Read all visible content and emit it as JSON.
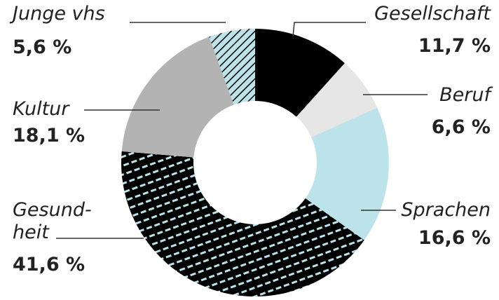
{
  "chart_data": {
    "type": "donut",
    "categories": [
      "Gesellschaft",
      "Beruf",
      "Sprachen",
      "Gesund-\nheit",
      "Kultur",
      "Junge vhs"
    ],
    "values": [
      11.7,
      6.6,
      16.6,
      41.6,
      18.1,
      5.6
    ],
    "value_labels": [
      "11,7 %",
      "6,6 %",
      "16,6 %",
      "41,6 %",
      "18,1 %",
      "5,6 %"
    ],
    "colors": [
      "#000000",
      "#e6e6e6",
      "#bde3ea",
      "#000000",
      "#b3b3b3",
      "#bde3ea"
    ],
    "hatched": [
      false,
      false,
      false,
      true,
      false,
      true
    ]
  }
}
